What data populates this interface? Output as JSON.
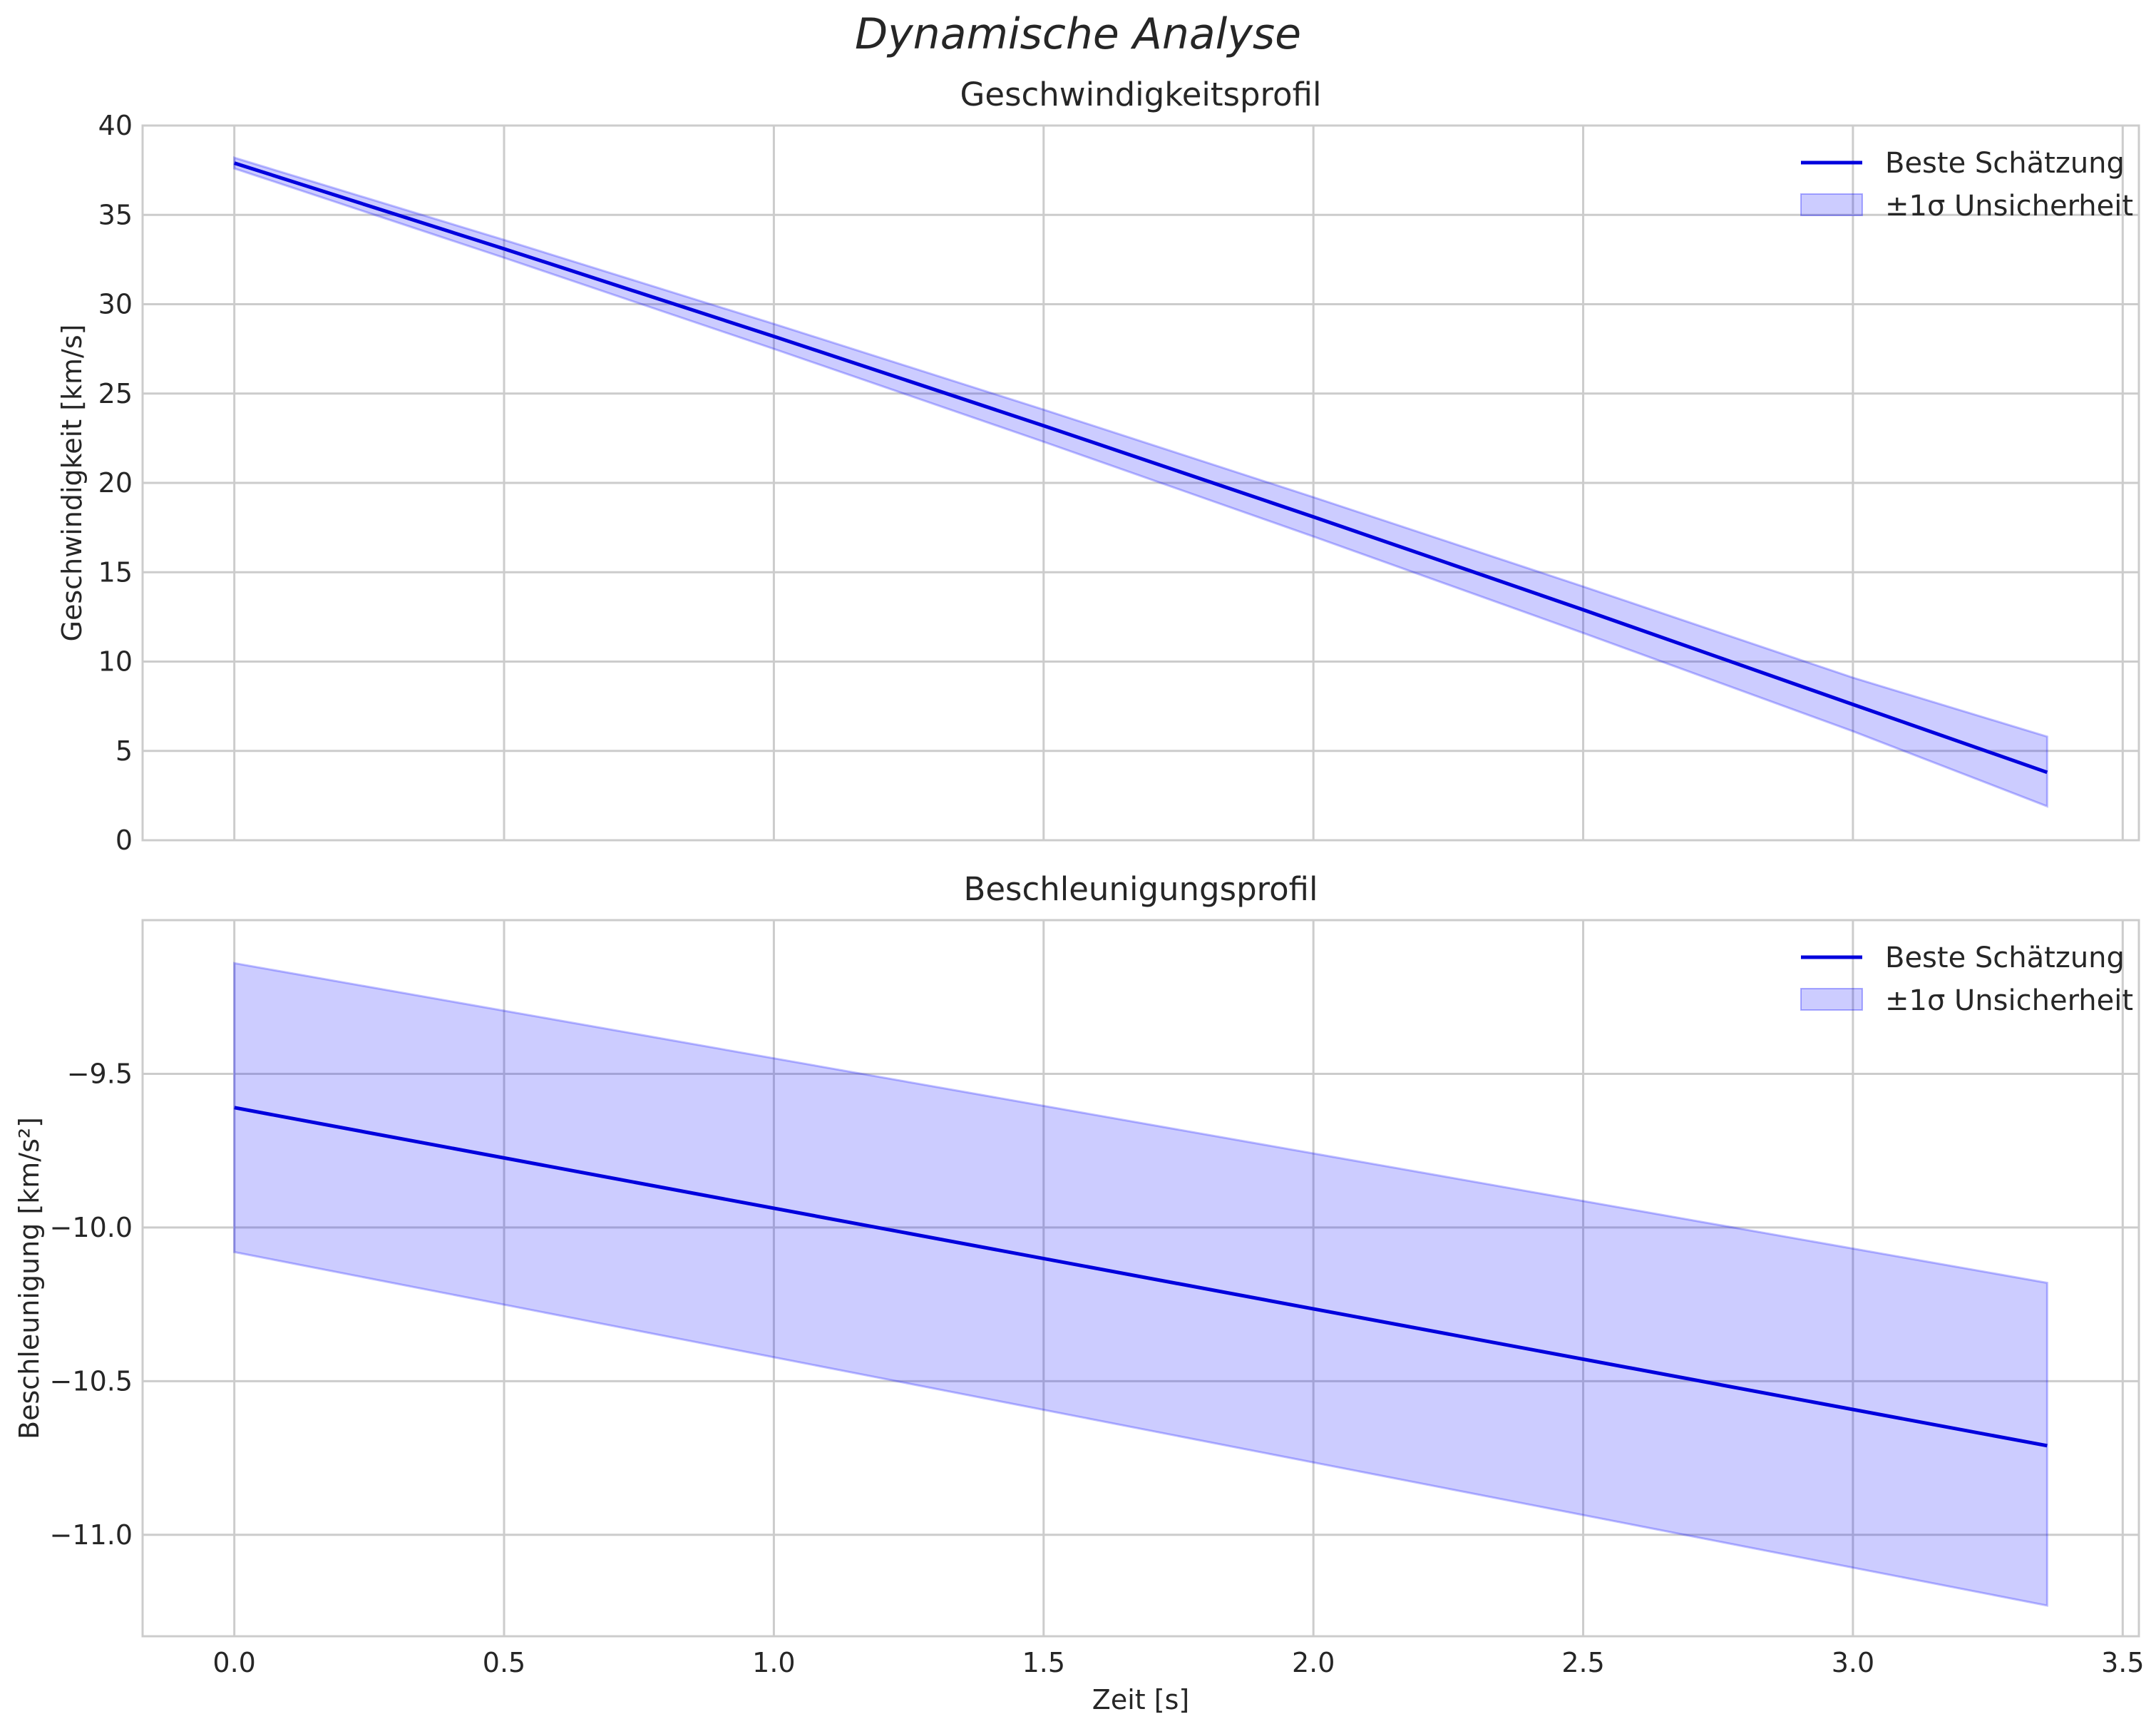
{
  "figure": {
    "suptitle": "Dynamische Analyse",
    "shared_xlabel": "Zeit [s]"
  },
  "colors": {
    "line": "#0000dd",
    "band_fill": "#0000ff",
    "band_opacity": 0.2,
    "grid": "#cccccc",
    "text": "#262626"
  },
  "chart_data": [
    {
      "type": "line",
      "title": "Geschwindigkeitsprofil",
      "xlabel": "",
      "ylabel": "Geschwindigkeit [km/s]",
      "xlim": [
        -0.17,
        3.53
      ],
      "ylim": [
        0,
        40
      ],
      "xticks": [
        0.0,
        0.5,
        1.0,
        1.5,
        2.0,
        2.5,
        3.0,
        3.5
      ],
      "xtick_labels": [],
      "yticks": [
        0,
        5,
        10,
        15,
        20,
        25,
        30,
        35,
        40
      ],
      "ytick_labels": [
        "0",
        "5",
        "10",
        "15",
        "20",
        "25",
        "30",
        "35",
        "40"
      ],
      "legend": {
        "location": "top-right",
        "line_label": "Beste Schätzung",
        "band_label": "±1σ Unsicherheit"
      },
      "x": [
        0.0,
        0.5,
        1.0,
        1.5,
        2.0,
        2.5,
        3.0,
        3.36
      ],
      "series": [
        {
          "name": "Beste Schätzung",
          "values": [
            37.9,
            33.1,
            28.2,
            23.2,
            18.1,
            12.9,
            7.6,
            3.8
          ]
        }
      ],
      "band": {
        "name": "±1σ Unsicherheit",
        "lower": [
          37.6,
          32.6,
          27.5,
          22.3,
          17.0,
          11.6,
          6.1,
          1.9
        ],
        "upper": [
          38.2,
          33.6,
          28.9,
          24.1,
          19.2,
          14.2,
          9.1,
          5.8
        ]
      }
    },
    {
      "type": "line",
      "title": "Beschleunigungsprofil",
      "xlabel": "Zeit [s]",
      "ylabel": "Beschleunigung [km/s²]",
      "xlim": [
        -0.17,
        3.53
      ],
      "ylim": [
        -11.33,
        -9.0
      ],
      "xticks": [
        0.0,
        0.5,
        1.0,
        1.5,
        2.0,
        2.5,
        3.0,
        3.5
      ],
      "xtick_labels": [
        "0.0",
        "0.5",
        "1.0",
        "1.5",
        "2.0",
        "2.5",
        "3.0",
        "3.5"
      ],
      "yticks": [
        -9.5,
        -10.0,
        -10.5,
        -11.0
      ],
      "ytick_labels": [
        "−9.5",
        "−10.0",
        "−10.5",
        "−11.0"
      ],
      "legend": {
        "location": "top-right",
        "line_label": "Beste Schätzung",
        "band_label": "±1σ Unsicherheit"
      },
      "x": [
        0.0,
        3.36
      ],
      "series": [
        {
          "name": "Beste Schätzung",
          "values": [
            -9.61,
            -10.71
          ]
        }
      ],
      "band": {
        "name": "±1σ Unsicherheit",
        "lower": [
          -10.08,
          -11.23
        ],
        "upper": [
          -9.14,
          -10.18
        ]
      }
    }
  ]
}
